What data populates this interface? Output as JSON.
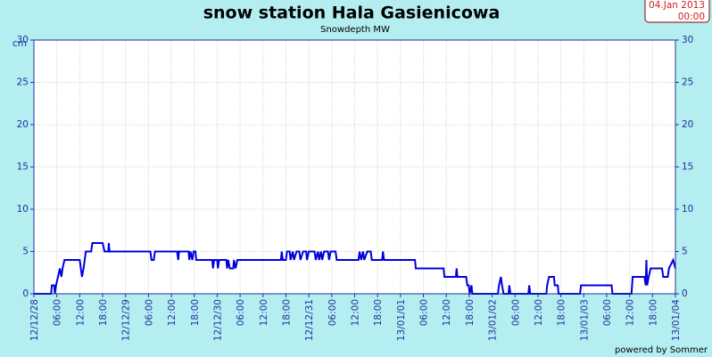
{
  "chart_data": {
    "type": "line",
    "title": "snow station Hala Gasienicowa",
    "subtitle": "Snowdepth MW",
    "y_label": "cm",
    "date_label": "04.Jan 2013",
    "time_label": "00:00",
    "footer": "powered by Sommer",
    "color": "#0000dd",
    "grid": true,
    "xlim": [
      0,
      168
    ],
    "xticks": [
      {
        "value": 0,
        "label": "12/12/28"
      },
      {
        "value": 6,
        "label": "06:00"
      },
      {
        "value": 12,
        "label": "12:00"
      },
      {
        "value": 18,
        "label": "18:00"
      },
      {
        "value": 24,
        "label": "12/12/29"
      },
      {
        "value": 30,
        "label": "06:00"
      },
      {
        "value": 36,
        "label": "12:00"
      },
      {
        "value": 42,
        "label": "18:00"
      },
      {
        "value": 48,
        "label": "12/12/30"
      },
      {
        "value": 54,
        "label": "06:00"
      },
      {
        "value": 60,
        "label": "12:00"
      },
      {
        "value": 66,
        "label": "18:00"
      },
      {
        "value": 72,
        "label": "12/12/31"
      },
      {
        "value": 78,
        "label": "06:00"
      },
      {
        "value": 84,
        "label": "12:00"
      },
      {
        "value": 90,
        "label": "18:00"
      },
      {
        "value": 96,
        "label": "13/01/01"
      },
      {
        "value": 102,
        "label": "06:00"
      },
      {
        "value": 108,
        "label": "12:00"
      },
      {
        "value": 114,
        "label": "18:00"
      },
      {
        "value": 120,
        "label": "13/01/02"
      },
      {
        "value": 126,
        "label": "06:00"
      },
      {
        "value": 132,
        "label": "12:00"
      },
      {
        "value": 138,
        "label": "18:00"
      },
      {
        "value": 144,
        "label": "13/01/03"
      },
      {
        "value": 150,
        "label": "06:00"
      },
      {
        "value": 156,
        "label": "12:00"
      },
      {
        "value": 162,
        "label": "18:00"
      },
      {
        "value": 168,
        "label": "13/01/04"
      }
    ],
    "ylim": [
      0,
      30
    ],
    "yticks": [
      0,
      5,
      10,
      15,
      20,
      25,
      30
    ],
    "x": [
      0,
      4.5,
      4.7,
      5.3,
      5.5,
      5.8,
      6.3,
      6.8,
      7.2,
      7.5,
      8,
      12,
      12.3,
      12.6,
      13,
      13.3,
      13.6,
      15,
      15.3,
      18,
      18.5,
      19.5,
      19.6,
      19.8,
      30.5,
      30.8,
      31.4,
      31.7,
      37.5,
      37.8,
      38,
      40.5,
      40.7,
      41,
      41.5,
      41.8,
      42.3,
      42.5,
      46.7,
      46.9,
      47.2,
      48,
      48.2,
      48.5,
      50.4,
      50.6,
      50.9,
      51.3,
      52.2,
      52.4,
      52.8,
      53.3,
      64.7,
      64.9,
      65.2,
      66,
      66.3,
      67,
      67.2,
      67.8,
      68.1,
      68.8,
      69.5,
      69.8,
      70.5,
      71.3,
      71.5,
      72,
      73.5,
      73.8,
      74.4,
      74.7,
      75.2,
      75.5,
      76,
      77,
      77.3,
      77.7,
      79,
      79.3,
      85,
      85.3,
      85.7,
      86.2,
      86.5,
      87.3,
      88.2,
      88.5,
      91.2,
      91.4,
      91.7,
      99.8,
      100,
      107.3,
      107.5,
      110.5,
      110.7,
      110.9,
      113.2,
      113.5,
      113.9,
      114.1,
      114.6,
      114.8,
      121.5,
      121.8,
      122.3,
      122.6,
      123,
      124.3,
      124.5,
      124.8,
      129.5,
      129.7,
      130,
      134.2,
      134.4,
      134.9,
      136.2,
      136.4,
      137.2,
      137.4,
      143,
      143.3,
      151.3,
      151.5,
      156.5,
      156.8,
      159.9,
      160.2,
      160.4,
      160.6,
      161,
      161.5,
      164.5,
      164.8,
      166,
      166.3,
      167.4,
      168
    ],
    "values": [
      0,
      0,
      1,
      1,
      0,
      1,
      2,
      3,
      2,
      3,
      4,
      4,
      3,
      2,
      3,
      4,
      5,
      5,
      6,
      6,
      5,
      5,
      6,
      5,
      5,
      4,
      4,
      5,
      5,
      4,
      5,
      5,
      4,
      5,
      4,
      5,
      5,
      4,
      4,
      3,
      4,
      4,
      3,
      4,
      4,
      3,
      4,
      3,
      3,
      4,
      3,
      4,
      4,
      5,
      4,
      4,
      5,
      5,
      4,
      5,
      4,
      5,
      5,
      4,
      5,
      5,
      4,
      5,
      5,
      4,
      5,
      4,
      5,
      4,
      5,
      5,
      4,
      5,
      5,
      4,
      4,
      5,
      4,
      5,
      4,
      5,
      5,
      4,
      4,
      5,
      4,
      4,
      3,
      3,
      2,
      2,
      3,
      2,
      2,
      1,
      1,
      0,
      1,
      0,
      0,
      1,
      2,
      1,
      0,
      0,
      1,
      0,
      0,
      1,
      0,
      0,
      1,
      2,
      2,
      1,
      1,
      0,
      0,
      1,
      1,
      0,
      0,
      2,
      2,
      1,
      4,
      1,
      2,
      3,
      3,
      2,
      2,
      3,
      4,
      3
    ]
  }
}
